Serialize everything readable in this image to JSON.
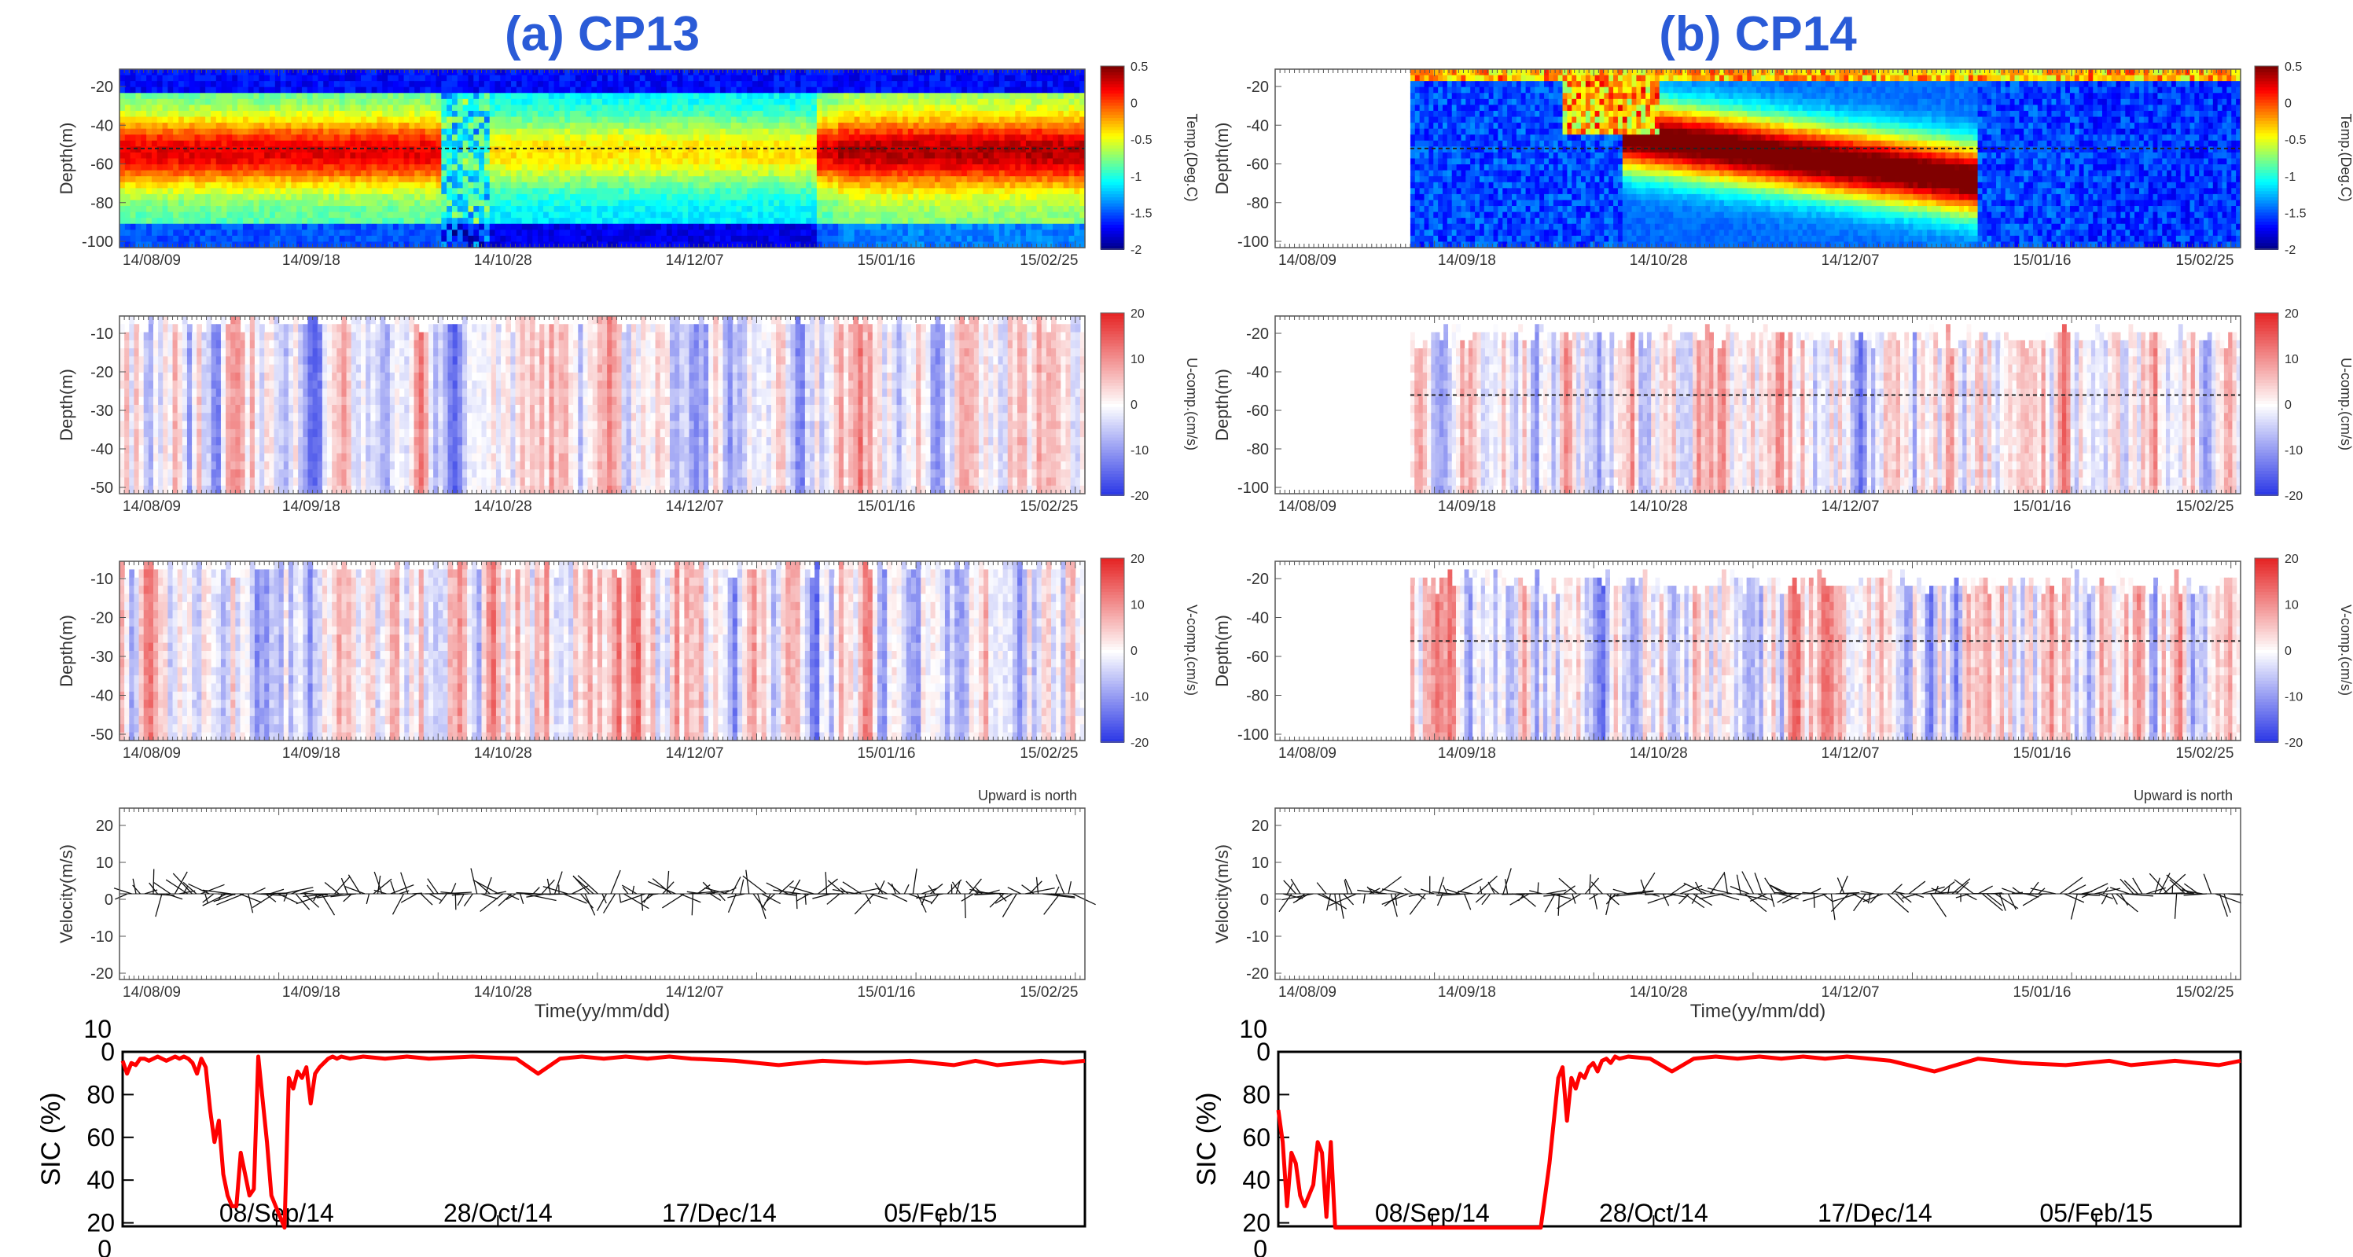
{
  "panels": [
    {
      "title": "(a) CP13"
    },
    {
      "title": "(b) CP14"
    }
  ],
  "chart_data": [
    {
      "panel": "(a) CP13",
      "type": "heatmap",
      "ylabel": "Depth(m)",
      "colorbar_label": "Temp.(Deg.C)",
      "colorbar_ticks": [
        "0.5",
        "0",
        "-0.5",
        "-1",
        "-1.5",
        "-2"
      ],
      "x_ticks": [
        "14/08/09",
        "14/09/18",
        "14/10/28",
        "14/12/07",
        "15/01/16",
        "15/02/25"
      ],
      "y_ticks": [
        "-20",
        "-40",
        "-60",
        "-80",
        "-100"
      ],
      "ylim": [
        -100,
        -10
      ],
      "reference_depth": -50
    },
    {
      "panel": "(a) CP13",
      "type": "heatmap",
      "ylabel": "Depth(m)",
      "colorbar_label": "U-comp.(cm/s)",
      "colorbar_ticks": [
        "20",
        "10",
        "0",
        "-10",
        "-20"
      ],
      "x_ticks": [
        "14/08/09",
        "14/09/18",
        "14/10/28",
        "14/12/07",
        "15/01/16",
        "15/02/25"
      ],
      "y_ticks": [
        "-10",
        "-20",
        "-30",
        "-40",
        "-50"
      ],
      "ylim": [
        -50,
        -5
      ]
    },
    {
      "panel": "(a) CP13",
      "type": "heatmap",
      "ylabel": "Depth(m)",
      "colorbar_label": "V-comp.(cm/s)",
      "colorbar_ticks": [
        "20",
        "10",
        "0",
        "-10",
        "-20"
      ],
      "x_ticks": [
        "14/08/09",
        "14/09/18",
        "14/10/28",
        "14/12/07",
        "15/01/16",
        "15/02/25"
      ],
      "y_ticks": [
        "-10",
        "-20",
        "-30",
        "-40",
        "-50"
      ],
      "ylim": [
        -50,
        -5
      ]
    },
    {
      "panel": "(a) CP13",
      "type": "line",
      "subtype": "vector-stick",
      "ylabel": "Velocity(m/s)",
      "xlabel": "Time(yy/mm/dd)",
      "annotation": "Upward is north",
      "x_ticks": [
        "14/08/09",
        "14/09/18",
        "14/10/28",
        "14/12/07",
        "15/01/16",
        "15/02/25"
      ],
      "y_ticks": [
        "20",
        "10",
        "0",
        "-10",
        "-20"
      ],
      "ylim": [
        -20,
        20
      ]
    },
    {
      "panel": "(a) CP13",
      "type": "line",
      "ylabel": "SIC (%)",
      "y_ticks": [
        "0",
        "80",
        "60",
        "40",
        "20"
      ],
      "y_overflow_labels": [
        "10",
        "0"
      ],
      "x_ticks": [
        "08/Sep/14",
        "28/Oct/14",
        "17/Dec/14",
        "05/Feb/15"
      ],
      "series": [
        {
          "color": "#ff0000",
          "x": [
            0,
            1,
            2,
            3,
            4,
            5,
            6,
            7,
            8,
            9,
            10,
            11,
            12,
            13,
            14,
            15,
            16,
            17,
            18,
            19,
            20,
            21,
            22,
            23,
            24,
            25,
            26,
            27,
            28,
            29,
            30,
            31,
            32,
            33,
            34,
            35,
            36,
            37,
            38,
            39,
            40,
            41,
            42,
            43,
            44,
            45,
            46,
            47,
            48,
            49,
            50,
            52,
            55,
            60,
            65,
            70,
            80,
            90,
            95,
            100,
            105,
            110,
            115,
            120,
            125,
            130,
            140,
            150,
            160,
            170,
            180,
            190,
            195,
            200,
            205,
            210,
            215,
            220
          ],
          "y": [
            98,
            92,
            97,
            96,
            99,
            99,
            98,
            99,
            100,
            99,
            98,
            99,
            100,
            99,
            100,
            99,
            97,
            92,
            99,
            95,
            75,
            60,
            70,
            45,
            35,
            30,
            30,
            55,
            45,
            35,
            38,
            100,
            80,
            60,
            35,
            30,
            25,
            20,
            90,
            85,
            93,
            90,
            95,
            78,
            92,
            95,
            97,
            99,
            100,
            99,
            100,
            99,
            100,
            99,
            100,
            99,
            100,
            99,
            92,
            99,
            100,
            99,
            100,
            99,
            100,
            99,
            98,
            96,
            98,
            97,
            98,
            96,
            98,
            96,
            97,
            98,
            97,
            98
          ]
        }
      ]
    },
    {
      "panel": "(b) CP14",
      "type": "heatmap",
      "ylabel": "Depth(m)",
      "colorbar_label": "Temp.(Deg.C)",
      "colorbar_ticks": [
        "0.5",
        "0",
        "-0.5",
        "-1",
        "-1.5",
        "-2"
      ],
      "x_ticks": [
        "14/08/09",
        "14/09/18",
        "14/10/28",
        "14/12/07",
        "15/01/16",
        "15/02/25"
      ],
      "y_ticks": [
        "-20",
        "-40",
        "-60",
        "-80",
        "-100"
      ],
      "ylim": [
        -100,
        -10
      ],
      "reference_depth": -50
    },
    {
      "panel": "(b) CP14",
      "type": "heatmap",
      "ylabel": "Depth(m)",
      "colorbar_label": "U-comp.(cm/s)",
      "colorbar_ticks": [
        "20",
        "10",
        "0",
        "-10",
        "-20"
      ],
      "x_ticks": [
        "14/08/09",
        "14/09/18",
        "14/10/28",
        "14/12/07",
        "15/01/16",
        "15/02/25"
      ],
      "y_ticks": [
        "-20",
        "-40",
        "-60",
        "-80",
        "-100"
      ],
      "ylim": [
        -100,
        -10
      ],
      "reference_depth": -50
    },
    {
      "panel": "(b) CP14",
      "type": "heatmap",
      "ylabel": "Depth(m)",
      "colorbar_label": "V-comp.(cm/s)",
      "colorbar_ticks": [
        "20",
        "10",
        "0",
        "-10",
        "-20"
      ],
      "x_ticks": [
        "14/08/09",
        "14/09/18",
        "14/10/28",
        "14/12/07",
        "15/01/16",
        "15/02/25"
      ],
      "y_ticks": [
        "-20",
        "-40",
        "-60",
        "-80",
        "-100"
      ],
      "ylim": [
        -100,
        -10
      ],
      "reference_depth": -50
    },
    {
      "panel": "(b) CP14",
      "type": "line",
      "subtype": "vector-stick",
      "ylabel": "Velocity(m/s)",
      "xlabel": "Time(yy/mm/dd)",
      "annotation": "Upward is north",
      "x_ticks": [
        "14/08/09",
        "14/09/18",
        "14/10/28",
        "14/12/07",
        "15/01/16",
        "15/02/25"
      ],
      "y_ticks": [
        "20",
        "10",
        "0",
        "-10",
        "-20"
      ],
      "ylim": [
        -20,
        20
      ]
    },
    {
      "panel": "(b) CP14",
      "type": "line",
      "ylabel": "SIC (%)",
      "y_ticks": [
        "0",
        "80",
        "60",
        "40",
        "20"
      ],
      "y_overflow_labels": [
        "10",
        "0"
      ],
      "x_ticks": [
        "08/Sep/14",
        "28/Oct/14",
        "17/Dec/14",
        "05/Feb/15"
      ],
      "series": [
        {
          "color": "#ff0000",
          "x": [
            0,
            1,
            2,
            3,
            4,
            5,
            6,
            7,
            8,
            9,
            10,
            11,
            12,
            13,
            14,
            15,
            16,
            17,
            18,
            19,
            20,
            40,
            60,
            61,
            62,
            63,
            64,
            65,
            66,
            67,
            68,
            69,
            70,
            71,
            72,
            73,
            74,
            75,
            76,
            77,
            78,
            80,
            85,
            90,
            95,
            100,
            105,
            110,
            115,
            120,
            125,
            130,
            140,
            150,
            160,
            170,
            180,
            190,
            195,
            200,
            205,
            210,
            215,
            220
          ],
          "y": [
            75,
            60,
            30,
            55,
            50,
            35,
            30,
            35,
            40,
            60,
            55,
            25,
            60,
            20,
            20,
            20,
            20,
            20,
            20,
            20,
            20,
            20,
            20,
            35,
            50,
            70,
            90,
            95,
            70,
            90,
            85,
            92,
            90,
            95,
            97,
            93,
            98,
            99,
            97,
            100,
            99,
            100,
            99,
            93,
            99,
            100,
            99,
            100,
            99,
            100,
            99,
            100,
            98,
            93,
            99,
            97,
            96,
            98,
            96,
            97,
            98,
            97,
            96,
            98
          ]
        }
      ]
    }
  ]
}
